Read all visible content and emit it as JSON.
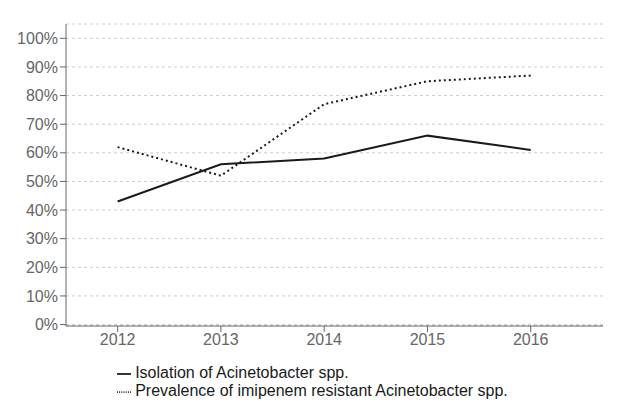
{
  "chart_data": {
    "type": "line",
    "x": [
      2012,
      2013,
      2014,
      2015,
      2016
    ],
    "series": [
      {
        "name": "Isolation of Acinetobacter spp.",
        "color": "#1a1a1a",
        "line_style": "solid",
        "values": [
          0.43,
          0.56,
          0.58,
          0.66,
          0.61
        ]
      },
      {
        "name": "Prevalence of imipenem resistant Acinetobacter spp.",
        "color": "#1a1a1a",
        "line_style": "dotted",
        "values": [
          0.62,
          0.52,
          0.77,
          0.85,
          0.87
        ]
      }
    ],
    "xlim": [
      2011.5,
      2016.7
    ],
    "xticks": [
      2012,
      2013,
      2014,
      2015,
      2016
    ],
    "ylim": [
      -0.005,
      1.05
    ],
    "yticks": [
      {
        "value": 0.0,
        "label": "0%"
      },
      {
        "value": 0.1,
        "label": "10%"
      },
      {
        "value": 0.2,
        "label": "20%"
      },
      {
        "value": 0.3,
        "label": "30%"
      },
      {
        "value": 0.4,
        "label": "40%"
      },
      {
        "value": 0.5,
        "label": "50%"
      },
      {
        "value": 0.6,
        "label": "60%"
      },
      {
        "value": 0.7,
        "label": "70%"
      },
      {
        "value": 0.8,
        "label": "80%"
      },
      {
        "value": 0.9,
        "label": "90%"
      },
      {
        "value": 1.0,
        "label": "100%"
      }
    ],
    "grid": "y",
    "legend": "bottom"
  }
}
